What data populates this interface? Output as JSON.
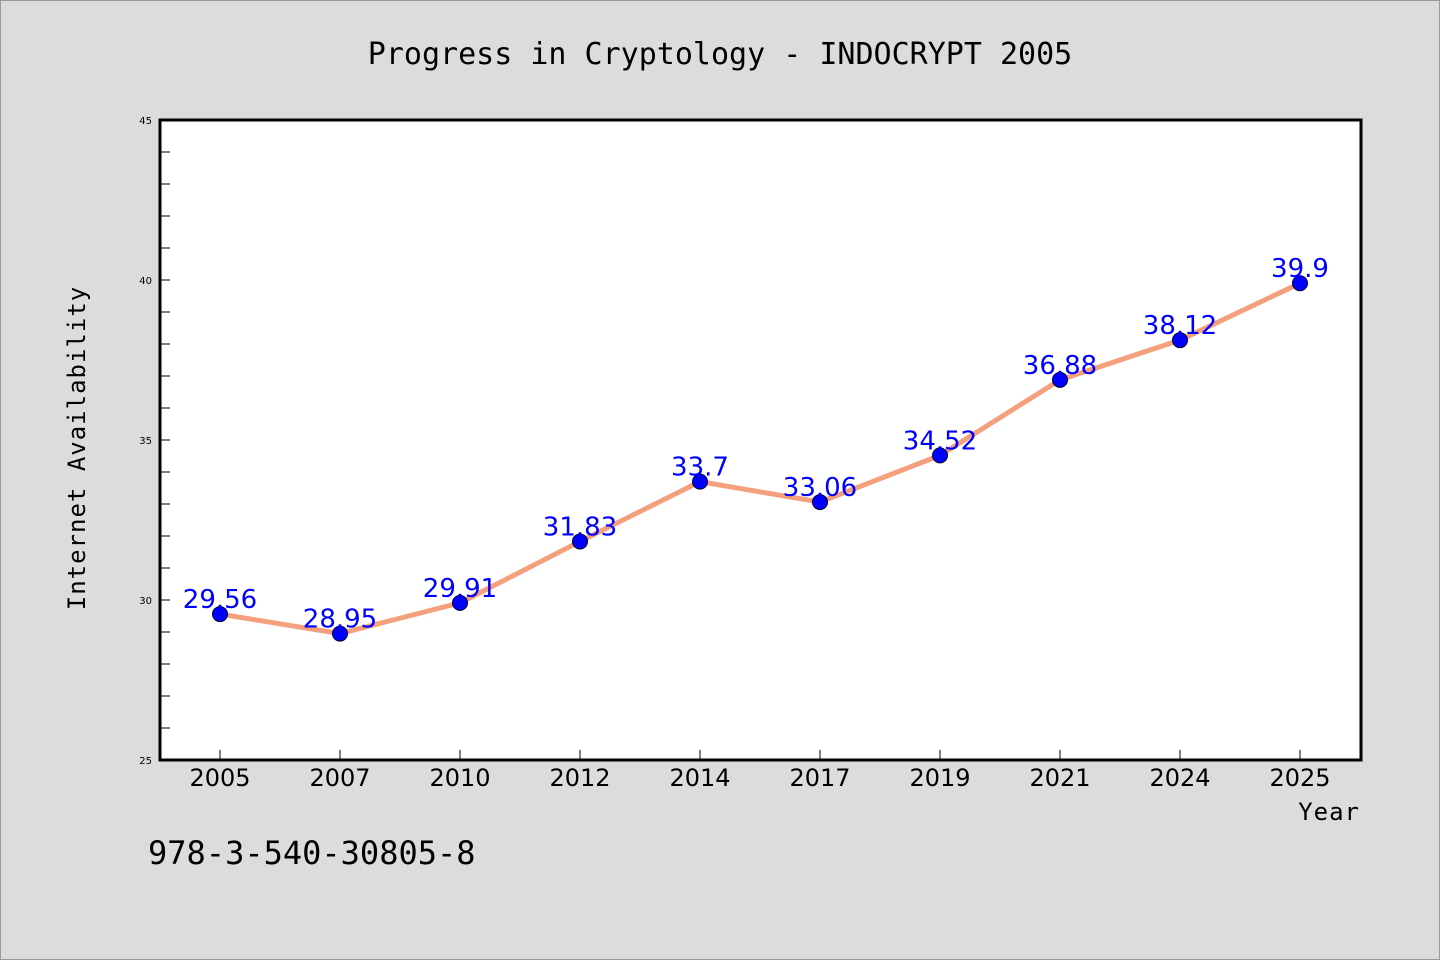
{
  "chart_data": {
    "type": "line",
    "title": "Progress in Cryptology - INDOCRYPT 2005",
    "xlabel": "Year",
    "ylabel": "Internet Availability",
    "categories": [
      "2005",
      "2007",
      "2010",
      "2012",
      "2014",
      "2017",
      "2019",
      "2021",
      "2024",
      "2025"
    ],
    "series": [
      {
        "values": [
          29.56,
          28.95,
          29.91,
          31.83,
          33.7,
          33.06,
          34.52,
          36.88,
          38.12,
          39.9
        ],
        "labels": [
          "29.56",
          "28.95",
          "29.91",
          "31.83",
          "33.7",
          "33.06",
          "34.52",
          "36.88",
          "38.12",
          "39.9"
        ]
      }
    ],
    "ylim": [
      25,
      45
    ],
    "yticks": [
      "25",
      "30",
      "35",
      "40",
      "45"
    ],
    "grid": false,
    "line_color": "#f4a07c",
    "marker_color": "#0000ff",
    "label_color": "#0000ff"
  },
  "footer": {
    "isbn": "978-3-540-30805-8"
  }
}
